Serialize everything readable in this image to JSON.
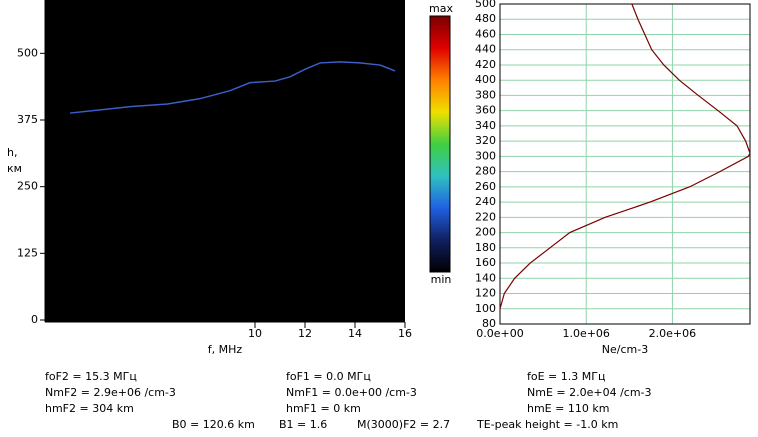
{
  "chart_data": [
    {
      "type": "ionogram",
      "xlabel": "f, MHz",
      "ylabel_lines": [
        "h,",
        "км"
      ],
      "xlim": [
        1.6,
        16
      ],
      "xticks": [
        10,
        12,
        14,
        16
      ],
      "ylim": [
        0,
        600
      ],
      "yticks": [
        0,
        125,
        250,
        375,
        500
      ],
      "background": "#000000",
      "color": "#3a5fc8",
      "x": [
        2.6,
        4.0,
        5.0,
        6.5,
        7.8,
        9.0,
        9.8,
        10.8,
        11.4,
        12.0,
        12.6,
        13.4,
        14.2,
        15.0,
        15.6
      ],
      "values": [
        388,
        395,
        400,
        405,
        415,
        430,
        445,
        448,
        456,
        470,
        482,
        484,
        482,
        478,
        467
      ]
    },
    {
      "type": "profile",
      "xlabel": "Ne/cm-3",
      "xlim": [
        0,
        2900000
      ],
      "xticks": [
        {
          "value": 0,
          "label": "0.0e+00"
        },
        {
          "value": 1000000,
          "label": "1.0e+06"
        },
        {
          "value": 2000000,
          "label": "2.0e+06"
        }
      ],
      "ylim": [
        80,
        500
      ],
      "yticks": [
        80,
        100,
        120,
        140,
        160,
        180,
        200,
        220,
        240,
        260,
        280,
        300,
        320,
        340,
        360,
        380,
        400,
        420,
        440,
        460,
        480,
        500
      ],
      "grid": true,
      "grid_color": "#8fd4a8",
      "color": "#7a0000",
      "x": [
        0,
        50000,
        170000,
        350000,
        580000,
        810000,
        1220000,
        1740000,
        2200000,
        2550000,
        2880000,
        2900000,
        2850000,
        2750000,
        2530000,
        2300000,
        2080000,
        1900000,
        1760000,
        1680000,
        1600000,
        1530000
      ],
      "values": [
        100,
        120,
        140,
        160,
        180,
        200,
        220,
        240,
        260,
        280,
        300,
        304,
        320,
        340,
        360,
        380,
        400,
        420,
        440,
        460,
        480,
        500
      ]
    }
  ],
  "colorbar": {
    "top_label": "max",
    "bottom_label": "min",
    "colors": [
      "#7a0000",
      "#e00000",
      "#ff8000",
      "#f0e000",
      "#40d040",
      "#30c0c0",
      "#2060e0",
      "#102060",
      "#000000"
    ]
  },
  "parameters": {
    "rows": [
      [
        "foF2 = 15.3 МГц",
        "foF1 = 0.0 МГц",
        "foE = 1.3 МГц"
      ],
      [
        "NmF2 = 2.9e+06 /cm-3",
        "NmF1 = 0.0e+00 /cm-3",
        "NmE = 2.0e+04 /cm-3"
      ],
      [
        "hmF2 = 304 km",
        "hmF1 = 0 km",
        "hmE = 110 km"
      ]
    ],
    "last_row": [
      "B0 = 120.6 km",
      "B1 = 1.6",
      "M(3000)F2 = 2.7",
      "TE-peak height = -1.0 km"
    ]
  }
}
